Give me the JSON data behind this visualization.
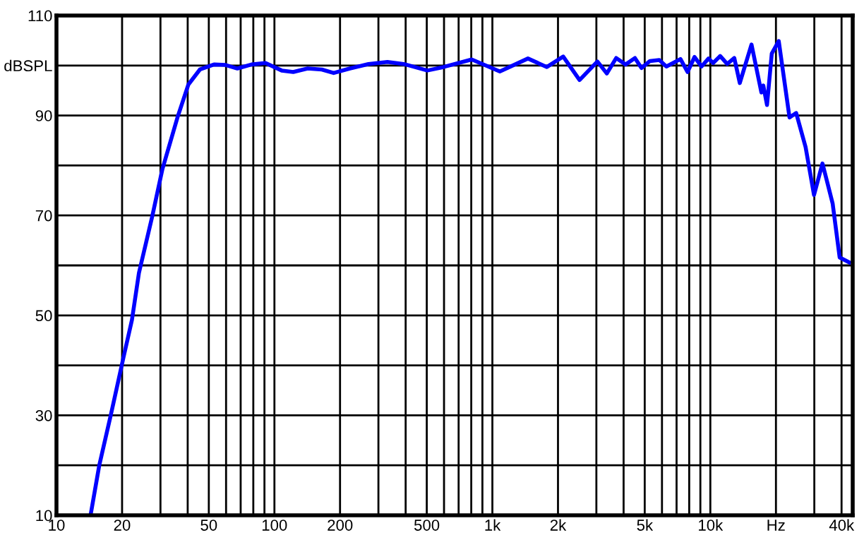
{
  "chart_data": {
    "type": "line",
    "log": "x",
    "grid": true,
    "marker": "none",
    "line_style": "solid",
    "xlim": [
      10,
      45000
    ],
    "ylim": [
      10,
      110
    ],
    "xticks": [
      10,
      {
        "value": 20,
        "label": "20"
      },
      {
        "value": 30,
        "label": null
      },
      {
        "value": 40,
        "label": null
      },
      {
        "value": 50,
        "label": "50"
      },
      {
        "value": 60,
        "label": null
      },
      {
        "value": 70,
        "label": null
      },
      {
        "value": 80,
        "label": null
      },
      {
        "value": 90,
        "label": null
      },
      100,
      200,
      {
        "value": 300,
        "label": null
      },
      {
        "value": 400,
        "label": null
      },
      500,
      {
        "value": 600,
        "label": null
      },
      {
        "value": 700,
        "label": null
      },
      {
        "value": 800,
        "label": null
      },
      {
        "value": 900,
        "label": null
      },
      {
        "value": 1000,
        "label": "1k"
      },
      {
        "value": 2000,
        "label": "2k"
      },
      {
        "value": 3000,
        "label": null
      },
      {
        "value": 4000,
        "label": null
      },
      {
        "value": 5000,
        "label": "5k"
      },
      {
        "value": 6000,
        "label": null
      },
      {
        "value": 7000,
        "label": null
      },
      {
        "value": 8000,
        "label": null
      },
      {
        "value": 9000,
        "label": null
      },
      {
        "value": 10000,
        "label": "10k"
      },
      {
        "value": 20000,
        "label": "Hz"
      },
      {
        "value": 30000,
        "label": null
      },
      {
        "value": 40000,
        "label": "40k"
      }
    ],
    "yticks": [
      10,
      {
        "value": 20,
        "label": null
      },
      30,
      {
        "value": 40,
        "label": null
      },
      50,
      {
        "value": 60,
        "label": null
      },
      70,
      {
        "value": 80,
        "label": null
      },
      90,
      {
        "value": 100,
        "label": "dBSPL"
      },
      110
    ],
    "series": [
      {
        "color": "#0000ff",
        "x": [
          14.4,
          15.7,
          17.8,
          20.3,
          22.2,
          23.9,
          27.5,
          30.6,
          35.9,
          40.3,
          45.5,
          52.8,
          59.7,
          67.6,
          78.5,
          91,
          108,
          122,
          142,
          165,
          187,
          222,
          270,
          330,
          392,
          503,
          597,
          804,
          1082,
          1456,
          1778,
          2113,
          2512,
          3034,
          3350,
          3700,
          4085,
          4508,
          4830,
          5284,
          5834,
          6285,
          7295,
          7860,
          8460,
          9105,
          9810,
          10300,
          11100,
          11950,
          12880,
          13650,
          15450,
          17150,
          17500,
          18200,
          19140,
          20600,
          23080,
          24760,
          27350,
          29900,
          32700,
          36400,
          39200,
          43400
        ],
        "values": [
          10.5,
          19.9,
          30.3,
          41.6,
          49.1,
          58.5,
          69.8,
          79.2,
          89.6,
          96.2,
          99.2,
          100.2,
          100.1,
          99.4,
          100.2,
          100.5,
          99.0,
          98.7,
          99.4,
          99.2,
          98.5,
          99.4,
          100.3,
          100.7,
          100.3,
          99.0,
          99.7,
          101.2,
          98.8,
          101.4,
          99.7,
          101.8,
          97.1,
          100.8,
          98.4,
          101.5,
          100.2,
          101.5,
          99.5,
          100.9,
          101.1,
          99.8,
          101.3,
          98.7,
          101.7,
          99.8,
          101.4,
          100.5,
          101.9,
          100.3,
          101.5,
          96.5,
          104.2,
          94.6,
          96.0,
          92.1,
          102.4,
          104.9,
          89.6,
          90.5,
          83.7,
          74.1,
          80.4,
          72.4,
          61.6,
          60.6
        ]
      }
    ]
  }
}
